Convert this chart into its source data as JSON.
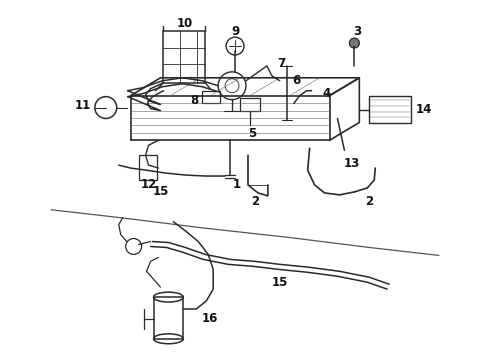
{
  "bg_color": "#ffffff",
  "line_color": "#2a2a2a",
  "label_color": "#111111",
  "label_fontsize": 8.5,
  "figsize": [
    4.9,
    3.6
  ],
  "dpi": 100
}
